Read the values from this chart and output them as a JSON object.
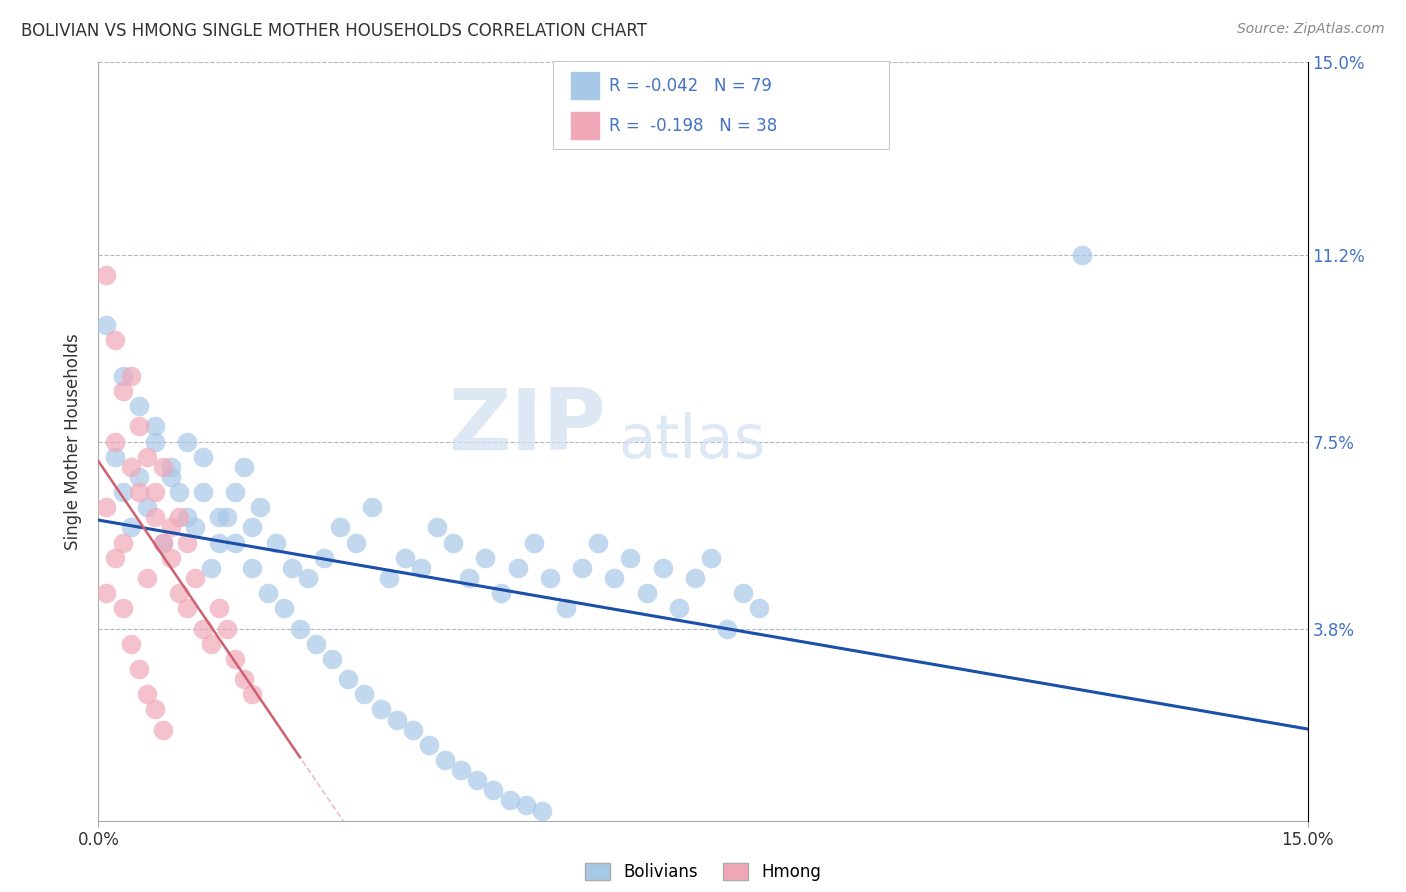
{
  "title": "BOLIVIAN VS HMONG SINGLE MOTHER HOUSEHOLDS CORRELATION CHART",
  "source": "Source: ZipAtlas.com",
  "ylabel": "Single Mother Households",
  "xlim": [
    0.0,
    0.15
  ],
  "ylim": [
    0.0,
    0.15
  ],
  "xtick_labels": [
    "0.0%",
    "15.0%"
  ],
  "ytick_positions": [
    0.038,
    0.075,
    0.112,
    0.15
  ],
  "ytick_labels": [
    "3.8%",
    "7.5%",
    "11.2%",
    "15.0%"
  ],
  "bolivians_R": -0.042,
  "bolivians_N": 79,
  "hmong_R": -0.198,
  "hmong_N": 38,
  "bolivian_color": "#a8c8e8",
  "hmong_color": "#f0a8b8",
  "bolivian_line_color": "#1a4faa",
  "hmong_line_color": "#d06070",
  "watermark_zip": "ZIP",
  "watermark_atlas": "atlas",
  "legend_entries": [
    "Bolivians",
    "Hmong"
  ],
  "bolivians_x": [
    0.002,
    0.003,
    0.004,
    0.005,
    0.006,
    0.007,
    0.008,
    0.009,
    0.01,
    0.011,
    0.012,
    0.013,
    0.014,
    0.015,
    0.016,
    0.017,
    0.018,
    0.019,
    0.02,
    0.022,
    0.024,
    0.026,
    0.028,
    0.03,
    0.032,
    0.034,
    0.036,
    0.038,
    0.04,
    0.042,
    0.044,
    0.046,
    0.048,
    0.05,
    0.052,
    0.054,
    0.056,
    0.058,
    0.06,
    0.062,
    0.064,
    0.066,
    0.068,
    0.07,
    0.072,
    0.074,
    0.076,
    0.078,
    0.08,
    0.082,
    0.001,
    0.003,
    0.005,
    0.007,
    0.009,
    0.011,
    0.013,
    0.015,
    0.017,
    0.019,
    0.021,
    0.023,
    0.025,
    0.027,
    0.029,
    0.031,
    0.033,
    0.035,
    0.037,
    0.039,
    0.041,
    0.043,
    0.045,
    0.047,
    0.049,
    0.051,
    0.053,
    0.055,
    0.122
  ],
  "bolivians_y": [
    0.072,
    0.065,
    0.058,
    0.068,
    0.062,
    0.075,
    0.055,
    0.07,
    0.065,
    0.06,
    0.058,
    0.072,
    0.05,
    0.055,
    0.06,
    0.065,
    0.07,
    0.058,
    0.062,
    0.055,
    0.05,
    0.048,
    0.052,
    0.058,
    0.055,
    0.062,
    0.048,
    0.052,
    0.05,
    0.058,
    0.055,
    0.048,
    0.052,
    0.045,
    0.05,
    0.055,
    0.048,
    0.042,
    0.05,
    0.055,
    0.048,
    0.052,
    0.045,
    0.05,
    0.042,
    0.048,
    0.052,
    0.038,
    0.045,
    0.042,
    0.098,
    0.088,
    0.082,
    0.078,
    0.068,
    0.075,
    0.065,
    0.06,
    0.055,
    0.05,
    0.045,
    0.042,
    0.038,
    0.035,
    0.032,
    0.028,
    0.025,
    0.022,
    0.02,
    0.018,
    0.015,
    0.012,
    0.01,
    0.008,
    0.006,
    0.004,
    0.003,
    0.002,
    0.112
  ],
  "hmong_x": [
    0.001,
    0.001,
    0.002,
    0.002,
    0.003,
    0.003,
    0.004,
    0.004,
    0.005,
    0.005,
    0.006,
    0.006,
    0.007,
    0.007,
    0.008,
    0.008,
    0.009,
    0.009,
    0.01,
    0.01,
    0.011,
    0.011,
    0.012,
    0.013,
    0.014,
    0.015,
    0.016,
    0.017,
    0.018,
    0.019,
    0.001,
    0.002,
    0.003,
    0.004,
    0.005,
    0.006,
    0.007,
    0.008
  ],
  "hmong_y": [
    0.108,
    0.062,
    0.095,
    0.075,
    0.085,
    0.055,
    0.07,
    0.088,
    0.065,
    0.078,
    0.072,
    0.048,
    0.06,
    0.065,
    0.055,
    0.07,
    0.058,
    0.052,
    0.045,
    0.06,
    0.042,
    0.055,
    0.048,
    0.038,
    0.035,
    0.042,
    0.038,
    0.032,
    0.028,
    0.025,
    0.045,
    0.052,
    0.042,
    0.035,
    0.03,
    0.025,
    0.022,
    0.018
  ]
}
